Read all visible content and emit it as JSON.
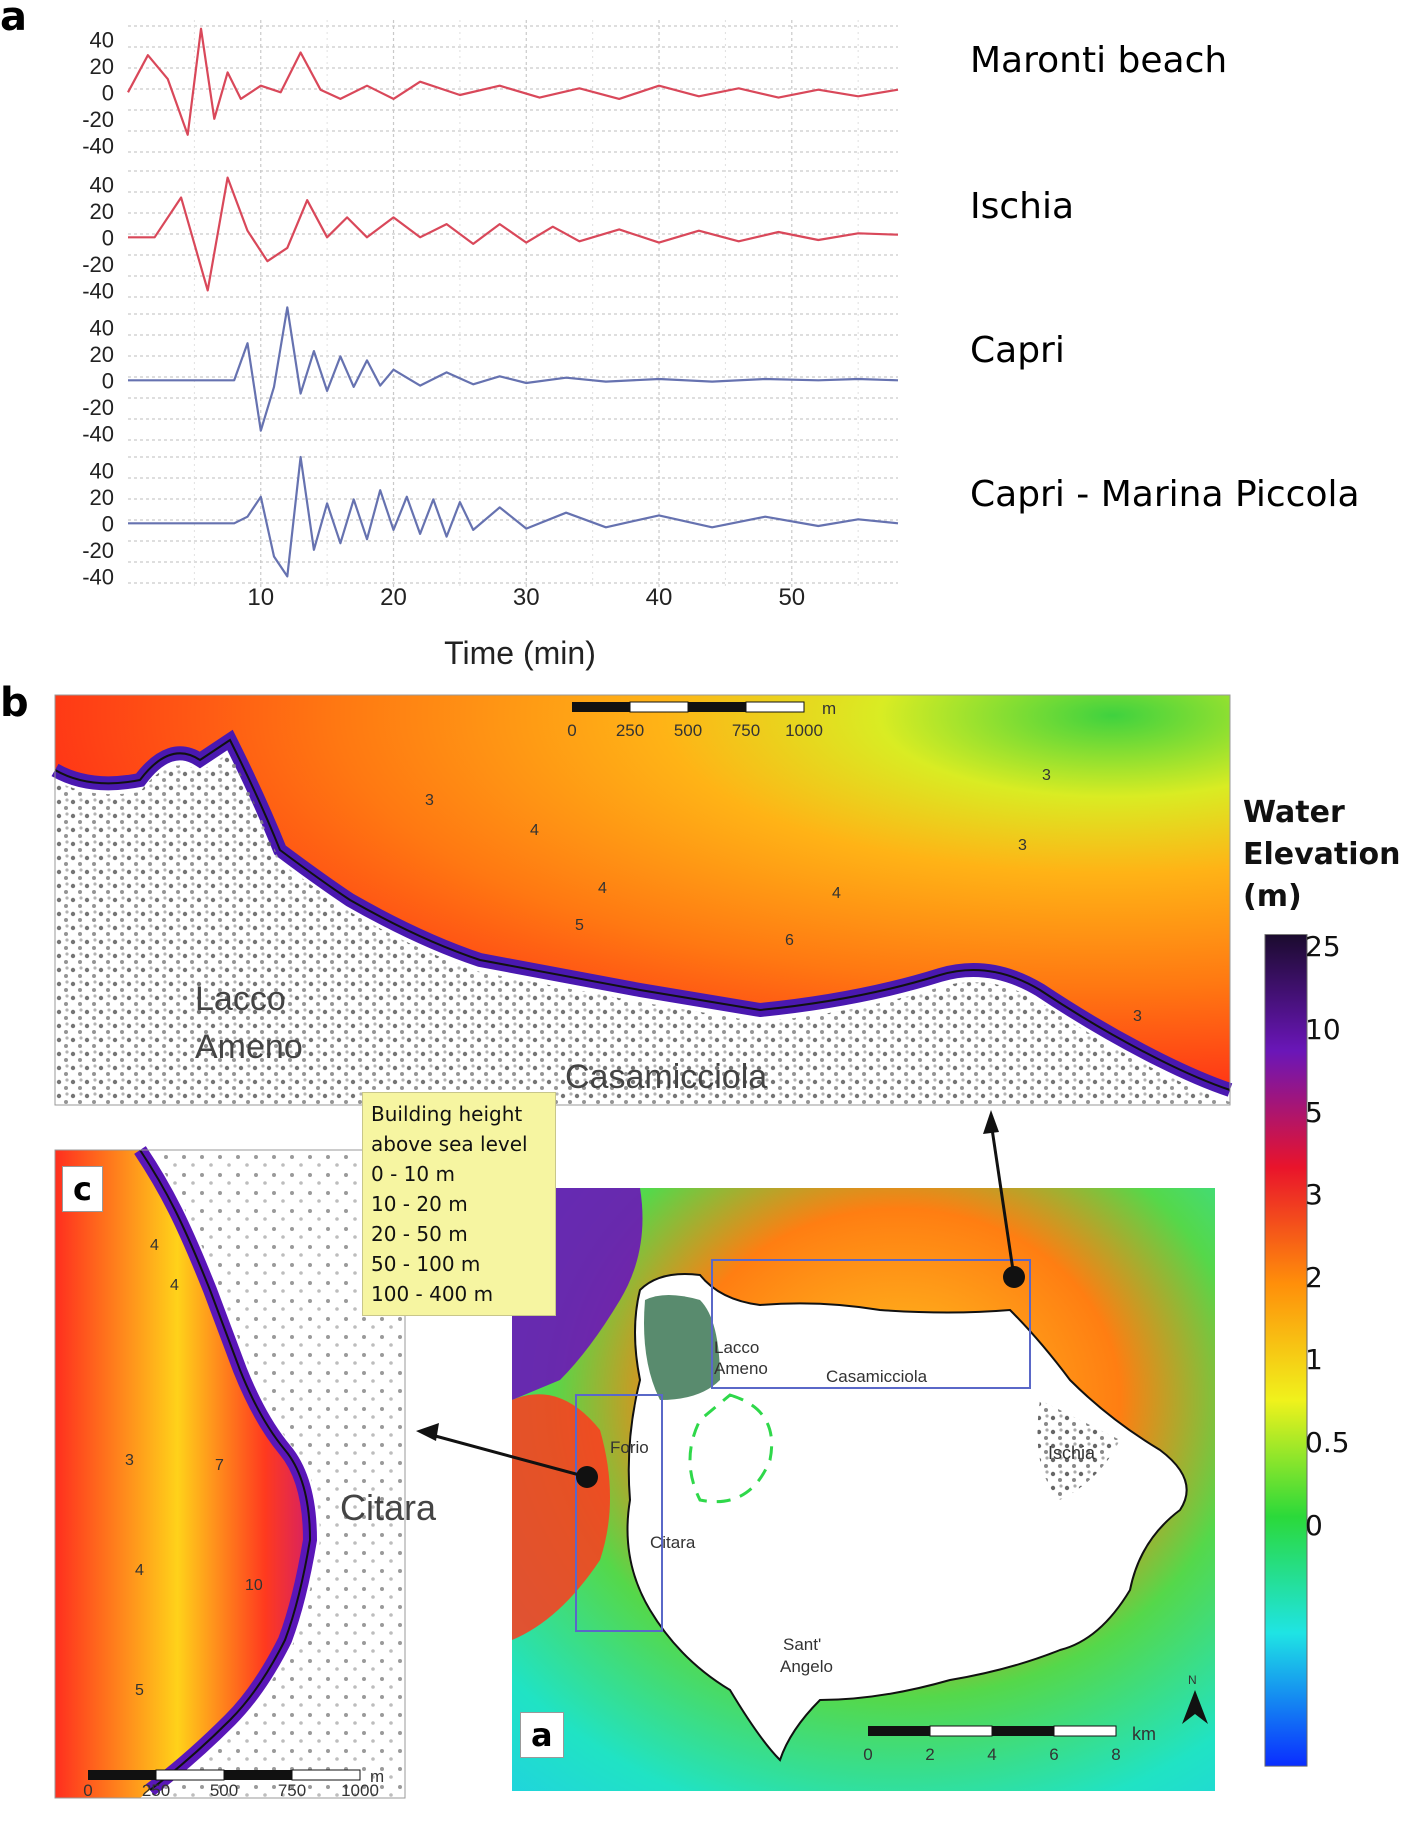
{
  "panel_a_letter": "a",
  "panel_b_letter": "b",
  "chart_data": {
    "type": "line",
    "xlabel": "Time (min)",
    "x_ticks": [
      10,
      20,
      30,
      40,
      50
    ],
    "xlim": [
      0,
      58
    ],
    "y_ticks": [
      40,
      20,
      0,
      -20,
      -40
    ],
    "ylim": [
      -45,
      50
    ],
    "series": [
      {
        "name": "Maronti beach",
        "color": "#d9485a",
        "x": [
          0,
          1.5,
          3,
          4.5,
          5.5,
          6.5,
          7.5,
          8.5,
          10,
          11.5,
          13,
          14.5,
          16,
          18,
          20,
          22,
          25,
          28,
          31,
          34,
          37,
          40,
          43,
          46,
          49,
          52,
          55,
          58
        ],
        "y": [
          0,
          28,
          10,
          -32,
          48,
          -20,
          15,
          -5,
          5,
          0,
          30,
          2,
          -5,
          5,
          -5,
          8,
          -2,
          5,
          -4,
          3,
          -5,
          5,
          -3,
          3,
          -4,
          2,
          -3,
          2
        ]
      },
      {
        "name": "Ischia",
        "color": "#d9485a",
        "x": [
          0,
          2,
          4,
          6,
          7.5,
          9,
          10.5,
          12,
          13.5,
          15,
          16.5,
          18,
          20,
          22,
          24,
          26,
          28,
          30,
          32,
          34,
          37,
          40,
          43,
          46,
          49,
          52,
          55,
          58
        ],
        "y": [
          0,
          0,
          30,
          -40,
          45,
          5,
          -18,
          -8,
          28,
          0,
          15,
          0,
          15,
          0,
          10,
          -5,
          10,
          -4,
          8,
          -3,
          6,
          -4,
          5,
          -3,
          4,
          -2,
          3,
          2
        ]
      },
      {
        "name": "Capri",
        "color": "#6672b0",
        "x": [
          0,
          5,
          8,
          9,
          10,
          11,
          12,
          13,
          14,
          15,
          16,
          17,
          18,
          19,
          20,
          22,
          24,
          26,
          28,
          30,
          33,
          36,
          40,
          44,
          48,
          52,
          55,
          58
        ],
        "y": [
          0,
          0,
          0,
          28,
          -38,
          -5,
          55,
          -10,
          22,
          -8,
          18,
          -5,
          15,
          -4,
          8,
          -4,
          6,
          -3,
          3,
          -2,
          2,
          -1,
          1,
          -1,
          1,
          0,
          1,
          0
        ]
      },
      {
        "name": "Capri - Marina Piccola",
        "color": "#6672b0",
        "x": [
          0,
          6,
          8,
          9,
          10,
          11,
          12,
          13,
          14,
          15,
          16,
          17,
          18,
          19,
          20,
          21,
          22,
          23,
          24,
          25,
          26,
          28,
          30,
          33,
          36,
          40,
          44,
          48,
          52,
          55,
          58
        ],
        "y": [
          0,
          0,
          0,
          5,
          20,
          -25,
          -40,
          50,
          -20,
          15,
          -15,
          18,
          -12,
          25,
          -5,
          20,
          -8,
          18,
          -10,
          16,
          -5,
          12,
          -4,
          8,
          -3,
          6,
          -3,
          5,
          -2,
          3,
          0
        ]
      }
    ]
  },
  "map": {
    "scale_b": {
      "labels": [
        "0",
        "250",
        "500",
        "750",
        "1000"
      ],
      "unit": "m"
    },
    "scale_c": {
      "labels": [
        "0",
        "250",
        "500",
        "750",
        "1000"
      ],
      "unit": "m"
    },
    "scale_a": {
      "labels": [
        "0",
        "2",
        "4",
        "6",
        "8"
      ],
      "unit": "km"
    },
    "place_b_lacco_1": "Lacco",
    "place_b_lacco_2": "Ameno",
    "place_b_casamicciola": "Casamicciola",
    "place_c_citara": "Citara",
    "inset_a_labels": [
      "Lacco",
      "Ameno",
      "Casamicciola",
      "Ischia",
      "Forio",
      "Citara",
      "Sant'",
      "Angelo"
    ],
    "contour_values_b": [
      "3",
      "4",
      "4",
      "5",
      "6",
      "4",
      "3",
      "3",
      "3"
    ],
    "contour_values_c": [
      "4",
      "4",
      "3",
      "7",
      "4",
      "10",
      "5"
    ],
    "letter_c": "c",
    "letter_a": "a",
    "north": "N"
  },
  "legend": {
    "title_1": "Building height",
    "title_2": "above sea level",
    "items": [
      "0 - 10 m",
      "10 - 20 m",
      "20 - 50 m",
      "50 - 100 m",
      "100 - 400 m"
    ]
  },
  "colorbar": {
    "title_1": "Water",
    "title_2": "Elevation",
    "title_3": "(m)",
    "labels": [
      "25",
      "10",
      "5",
      "3",
      "2",
      "1",
      "0.5",
      "0"
    ],
    "colors": [
      "#1b0b2e",
      "#6a16b8",
      "#e9142b",
      "#ff8f0a",
      "#f0f21c",
      "#2bd93a",
      "#1fe4e4",
      "#0a2dff"
    ]
  }
}
